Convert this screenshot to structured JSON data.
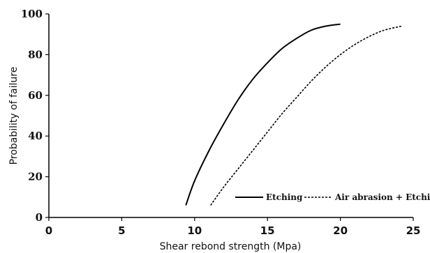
{
  "chart_data": {
    "type": "line",
    "xlabel": "Shear rebond strength (Mpa)",
    "ylabel": "Probability of failure",
    "xlim": [
      0,
      25
    ],
    "ylim": [
      0,
      100
    ],
    "x_ticks": [
      "0",
      "5",
      "10",
      "15",
      "20",
      "25"
    ],
    "y_ticks": [
      "0",
      "20",
      "40",
      "60",
      "80",
      "100"
    ],
    "grid": false,
    "legend": "bottom-right",
    "series": [
      {
        "name": "Etching",
        "style": "solid",
        "color": "#000000",
        "x": [
          9.4,
          10,
          11,
          12,
          13,
          14,
          15,
          16,
          17,
          18,
          19,
          20
        ],
        "y": [
          6,
          18,
          33,
          46,
          58,
          68,
          76,
          83,
          88,
          92,
          94,
          95
        ]
      },
      {
        "name": "Air abrasion + Etching",
        "style": "dashed",
        "color": "#000000",
        "x": [
          11.1,
          12,
          13,
          14,
          15,
          16,
          17,
          18,
          19,
          20,
          21,
          22,
          23,
          24.2
        ],
        "y": [
          6,
          15,
          24,
          33,
          42,
          51,
          59,
          67,
          74,
          80,
          85,
          89,
          92,
          94
        ]
      }
    ]
  }
}
